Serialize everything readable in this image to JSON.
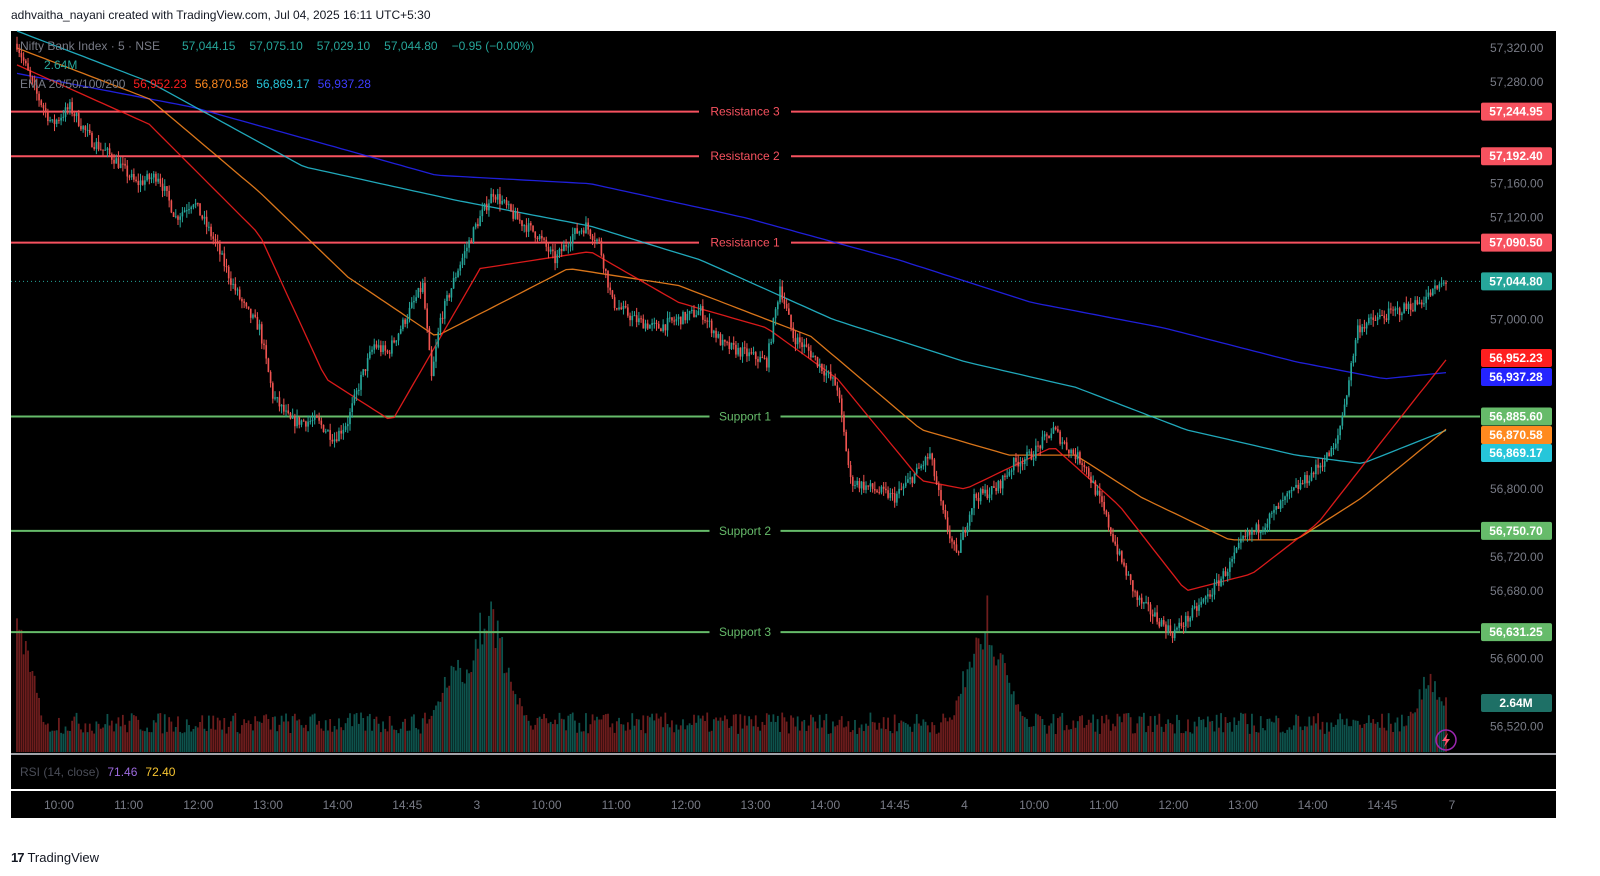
{
  "header": {
    "text": "adhvaitha_nayani created with TradingView.com, Jul 04, 2025 16:11 UTC+5:30"
  },
  "footer": {
    "brand": "TradingView",
    "mark": "17"
  },
  "legend": {
    "symbol": "Nifty Bank Index · 5 · NSE",
    "ohlc": [
      "57,044.15",
      "57,075.10",
      "57,029.10",
      "57,044.80",
      "−0.95 (−0.00%)"
    ],
    "volume": "2.64M",
    "ema_label": "EMA 20/50/100/200",
    "ema_values": [
      "56,952.23",
      "56,870.58",
      "56,869.17",
      "56,937.28"
    ]
  },
  "rsi": {
    "label": "RSI (14, close)",
    "value1": "71.46",
    "value2": "72.40"
  },
  "colors": {
    "background": "#000000",
    "up": "#26a69a",
    "down": "#ef5350",
    "resistance": "#f7525f",
    "support": "#66bb6a",
    "ema20": "#ff1f1f",
    "ema50": "#ff8a1f",
    "ema100": "#26c6da",
    "ema200": "#2424ff",
    "axis_text": "#787b86"
  },
  "chart_data": {
    "type": "candlestick",
    "ylim": [
      56490,
      57340
    ],
    "y_ticks": [
      "57,320.00",
      "57,280.00",
      "57,160.00",
      "57,120.00",
      "57,000.00",
      "56,800.00",
      "56,720.00",
      "56,680.00",
      "56,600.00",
      "56,520.00"
    ],
    "y_tick_values": [
      57320,
      57280,
      57160,
      57120,
      57000,
      56800,
      56720,
      56680,
      56600,
      56520
    ],
    "x_ticks": [
      "10:00",
      "11:00",
      "12:00",
      "13:00",
      "14:00",
      "14:45",
      "3",
      "10:00",
      "11:00",
      "12:00",
      "13:00",
      "14:00",
      "14:45",
      "4",
      "10:00",
      "11:00",
      "12:00",
      "13:00",
      "14:00",
      "14:45",
      "7"
    ],
    "levels": [
      {
        "name": "Resistance 3",
        "value": 57244.95,
        "label": "57,244.95",
        "kind": "resistance"
      },
      {
        "name": "Resistance 2",
        "value": 57192.4,
        "label": "57,192.40",
        "kind": "resistance"
      },
      {
        "name": "Resistance 1",
        "value": 57090.5,
        "label": "57,090.50",
        "kind": "resistance"
      },
      {
        "name": "Support 1",
        "value": 56885.6,
        "label": "56,885.60",
        "kind": "support"
      },
      {
        "name": "Support 2",
        "value": 56750.7,
        "label": "56,750.70",
        "kind": "support"
      },
      {
        "name": "Support 3",
        "value": 56631.25,
        "label": "56,631.25",
        "kind": "support"
      }
    ],
    "last_price": {
      "value": 57044.8,
      "label": "57,044.80"
    },
    "ema_tags": [
      {
        "value": 56952.23,
        "label": "56,952.23",
        "color": "#ff1f1f"
      },
      {
        "value": 56937.28,
        "label": "56,937.28",
        "color": "#2424ff"
      },
      {
        "value": 56870.58,
        "label": "56,870.58",
        "color": "#ff8a1f"
      },
      {
        "value": 56869.17,
        "label": "56,869.17",
        "color": "#26c6da"
      }
    ],
    "volume_tag": "2.64M",
    "close_path": [
      [
        0,
        57325
      ],
      [
        8,
        57270
      ],
      [
        16,
        57230
      ],
      [
        24,
        57250
      ],
      [
        34,
        57210
      ],
      [
        44,
        57190
      ],
      [
        54,
        57160
      ],
      [
        64,
        57170
      ],
      [
        72,
        57120
      ],
      [
        80,
        57140
      ],
      [
        90,
        57090
      ],
      [
        98,
        57040
      ],
      [
        104,
        57010
      ],
      [
        110,
        56990
      ],
      [
        116,
        56910
      ],
      [
        124,
        56880
      ],
      [
        136,
        56880
      ],
      [
        144,
        56860
      ],
      [
        150,
        56880
      ],
      [
        156,
        56930
      ],
      [
        162,
        56970
      ],
      [
        168,
        56960
      ],
      [
        176,
        57000
      ],
      [
        184,
        57040
      ],
      [
        188,
        56930
      ],
      [
        192,
        57000
      ],
      [
        200,
        57060
      ],
      [
        208,
        57110
      ],
      [
        216,
        57150
      ],
      [
        226,
        57120
      ],
      [
        236,
        57100
      ],
      [
        244,
        57070
      ],
      [
        252,
        57100
      ],
      [
        258,
        57110
      ],
      [
        264,
        57090
      ],
      [
        270,
        57020
      ],
      [
        280,
        57000
      ],
      [
        290,
        56990
      ],
      [
        300,
        57000
      ],
      [
        310,
        57010
      ],
      [
        320,
        56970
      ],
      [
        330,
        56960
      ],
      [
        340,
        56950
      ],
      [
        346,
        57040
      ],
      [
        352,
        56980
      ],
      [
        360,
        56960
      ],
      [
        372,
        56920
      ],
      [
        378,
        56810
      ],
      [
        388,
        56800
      ],
      [
        398,
        56790
      ],
      [
        408,
        56820
      ],
      [
        414,
        56840
      ],
      [
        420,
        56770
      ],
      [
        426,
        56720
      ],
      [
        434,
        56790
      ],
      [
        444,
        56800
      ],
      [
        452,
        56830
      ],
      [
        460,
        56840
      ],
      [
        470,
        56870
      ],
      [
        476,
        56850
      ],
      [
        484,
        56830
      ],
      [
        492,
        56780
      ],
      [
        500,
        56720
      ],
      [
        508,
        56670
      ],
      [
        516,
        56650
      ],
      [
        524,
        56630
      ],
      [
        532,
        56650
      ],
      [
        542,
        56680
      ],
      [
        550,
        56710
      ],
      [
        556,
        56740
      ],
      [
        566,
        56760
      ],
      [
        576,
        56790
      ],
      [
        588,
        56820
      ],
      [
        598,
        56850
      ],
      [
        602,
        56900
      ],
      [
        608,
        56990
      ],
      [
        616,
        57000
      ],
      [
        626,
        57010
      ],
      [
        636,
        57020
      ],
      [
        648,
        57044.8
      ]
    ],
    "ema20_path": [
      [
        0,
        57300
      ],
      [
        60,
        57230
      ],
      [
        110,
        57100
      ],
      [
        140,
        56930
      ],
      [
        170,
        56880
      ],
      [
        210,
        57060
      ],
      [
        260,
        57080
      ],
      [
        300,
        57020
      ],
      [
        340,
        56990
      ],
      [
        372,
        56930
      ],
      [
        410,
        56810
      ],
      [
        430,
        56800
      ],
      [
        470,
        56850
      ],
      [
        500,
        56780
      ],
      [
        530,
        56680
      ],
      [
        560,
        56700
      ],
      [
        590,
        56760
      ],
      [
        620,
        56860
      ],
      [
        648,
        56952.23
      ]
    ],
    "ema50_path": [
      [
        0,
        57320
      ],
      [
        60,
        57260
      ],
      [
        110,
        57150
      ],
      [
        150,
        57050
      ],
      [
        190,
        56980
      ],
      [
        250,
        57060
      ],
      [
        300,
        57040
      ],
      [
        360,
        56980
      ],
      [
        410,
        56870
      ],
      [
        450,
        56840
      ],
      [
        480,
        56840
      ],
      [
        510,
        56790
      ],
      [
        550,
        56740
      ],
      [
        580,
        56740
      ],
      [
        610,
        56790
      ],
      [
        648,
        56870.58
      ]
    ],
    "ema100_path": [
      [
        0,
        57340
      ],
      [
        60,
        57280
      ],
      [
        130,
        57180
      ],
      [
        200,
        57140
      ],
      [
        260,
        57110
      ],
      [
        310,
        57070
      ],
      [
        370,
        57000
      ],
      [
        430,
        56950
      ],
      [
        480,
        56920
      ],
      [
        530,
        56870
      ],
      [
        580,
        56840
      ],
      [
        610,
        56830
      ],
      [
        648,
        56869.17
      ]
    ],
    "ema200_path": [
      [
        0,
        57290
      ],
      [
        80,
        57250
      ],
      [
        190,
        57170
      ],
      [
        260,
        57160
      ],
      [
        330,
        57120
      ],
      [
        400,
        57070
      ],
      [
        460,
        57020
      ],
      [
        520,
        56990
      ],
      [
        580,
        56950
      ],
      [
        620,
        56930
      ],
      [
        648,
        56937.28
      ]
    ],
    "volume_spikes": [
      [
        0,
        0.85
      ],
      [
        198,
        0.6
      ],
      [
        210,
        0.78
      ],
      [
        215,
        0.93
      ],
      [
        222,
        0.5
      ],
      [
        436,
        0.8
      ],
      [
        440,
        0.9
      ],
      [
        446,
        0.62
      ],
      [
        640,
        0.5
      ],
      [
        645,
        0.4
      ]
    ]
  }
}
